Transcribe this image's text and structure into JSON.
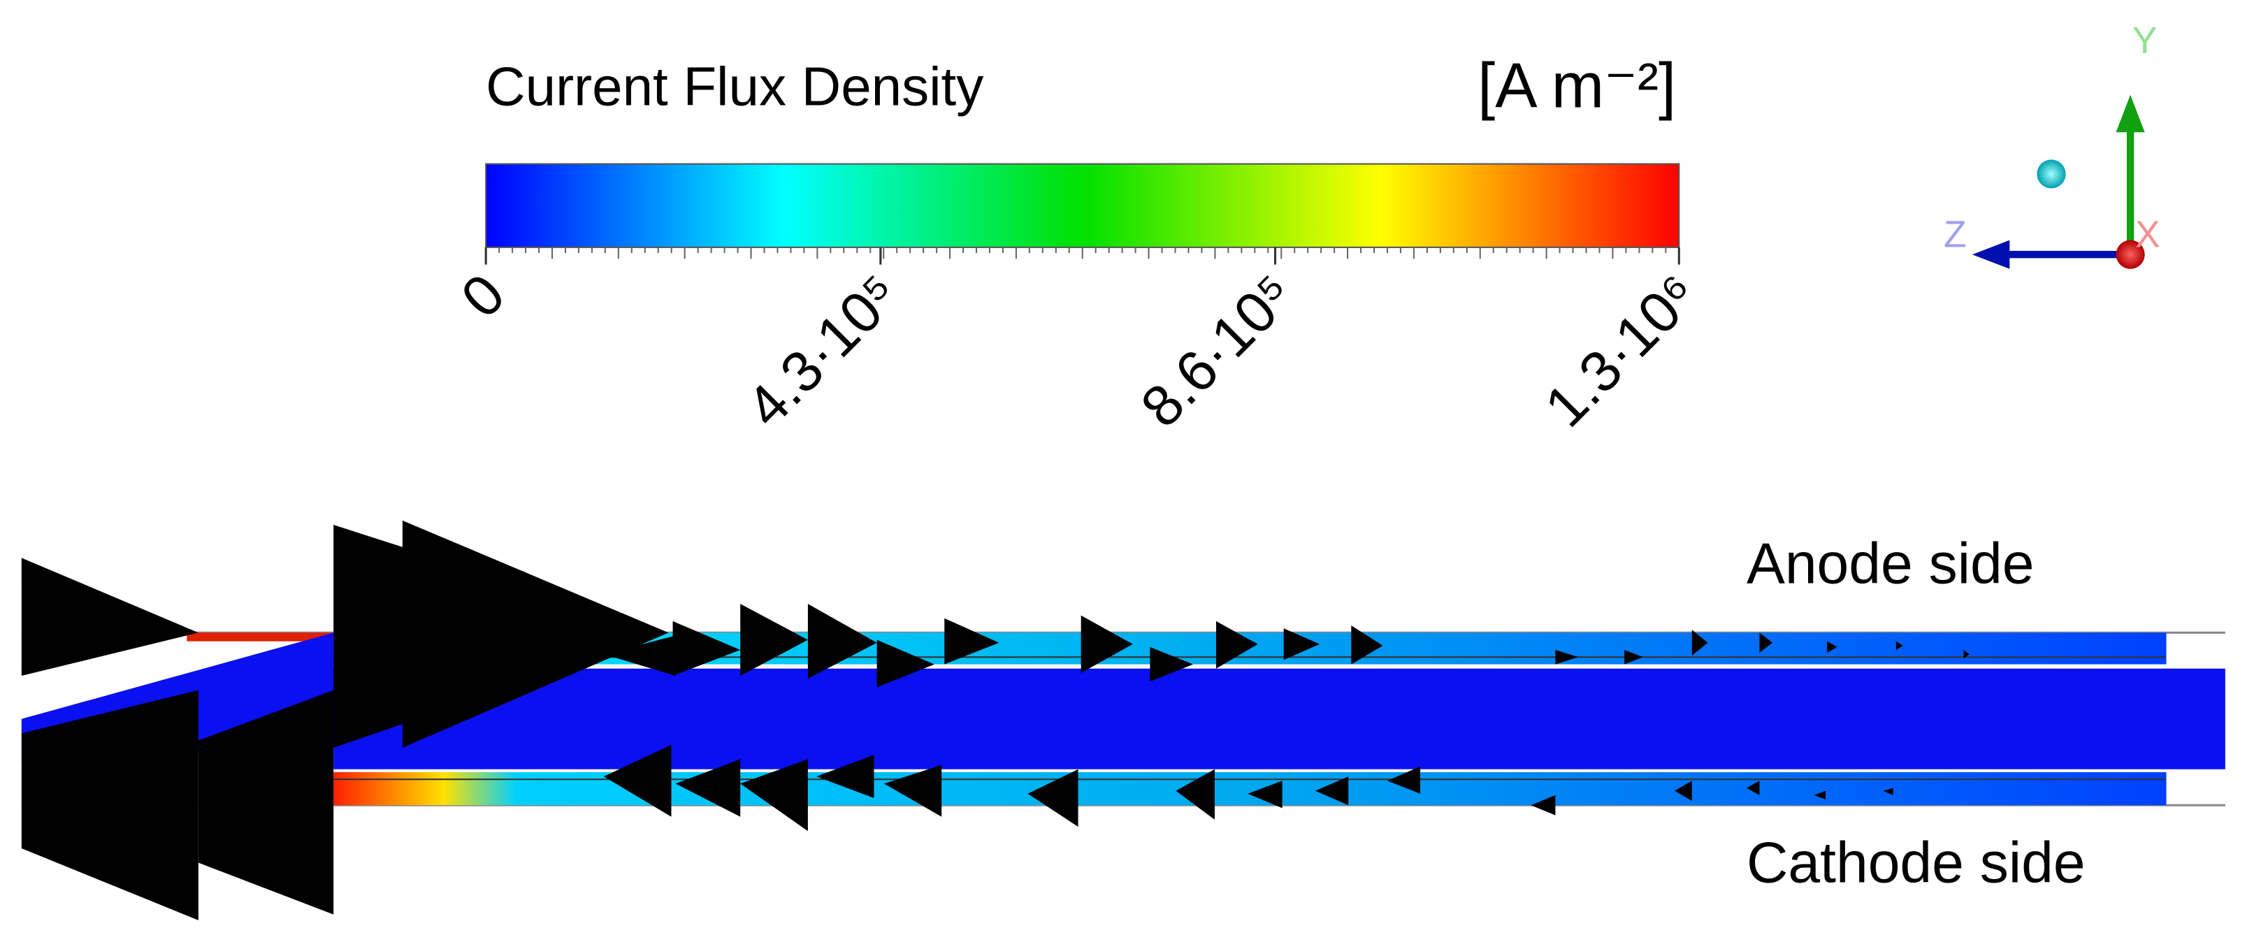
{
  "colorbar": {
    "title": "Current Flux Density",
    "unit": "[A m⁻²]",
    "lim": [
      0,
      1300000
    ],
    "ticks": [
      0,
      {
        "value": 430000,
        "label": "4.3·10⁵"
      },
      {
        "value": 860000,
        "label": "8.6·10⁵"
      },
      {
        "value": 1300000,
        "label": "1.3·10⁶"
      }
    ]
  },
  "axes": {
    "x": "X",
    "y": "Y",
    "z": "Z"
  },
  "annotations": {
    "anode": "Anode side",
    "cathode": "Cathode side"
  }
}
